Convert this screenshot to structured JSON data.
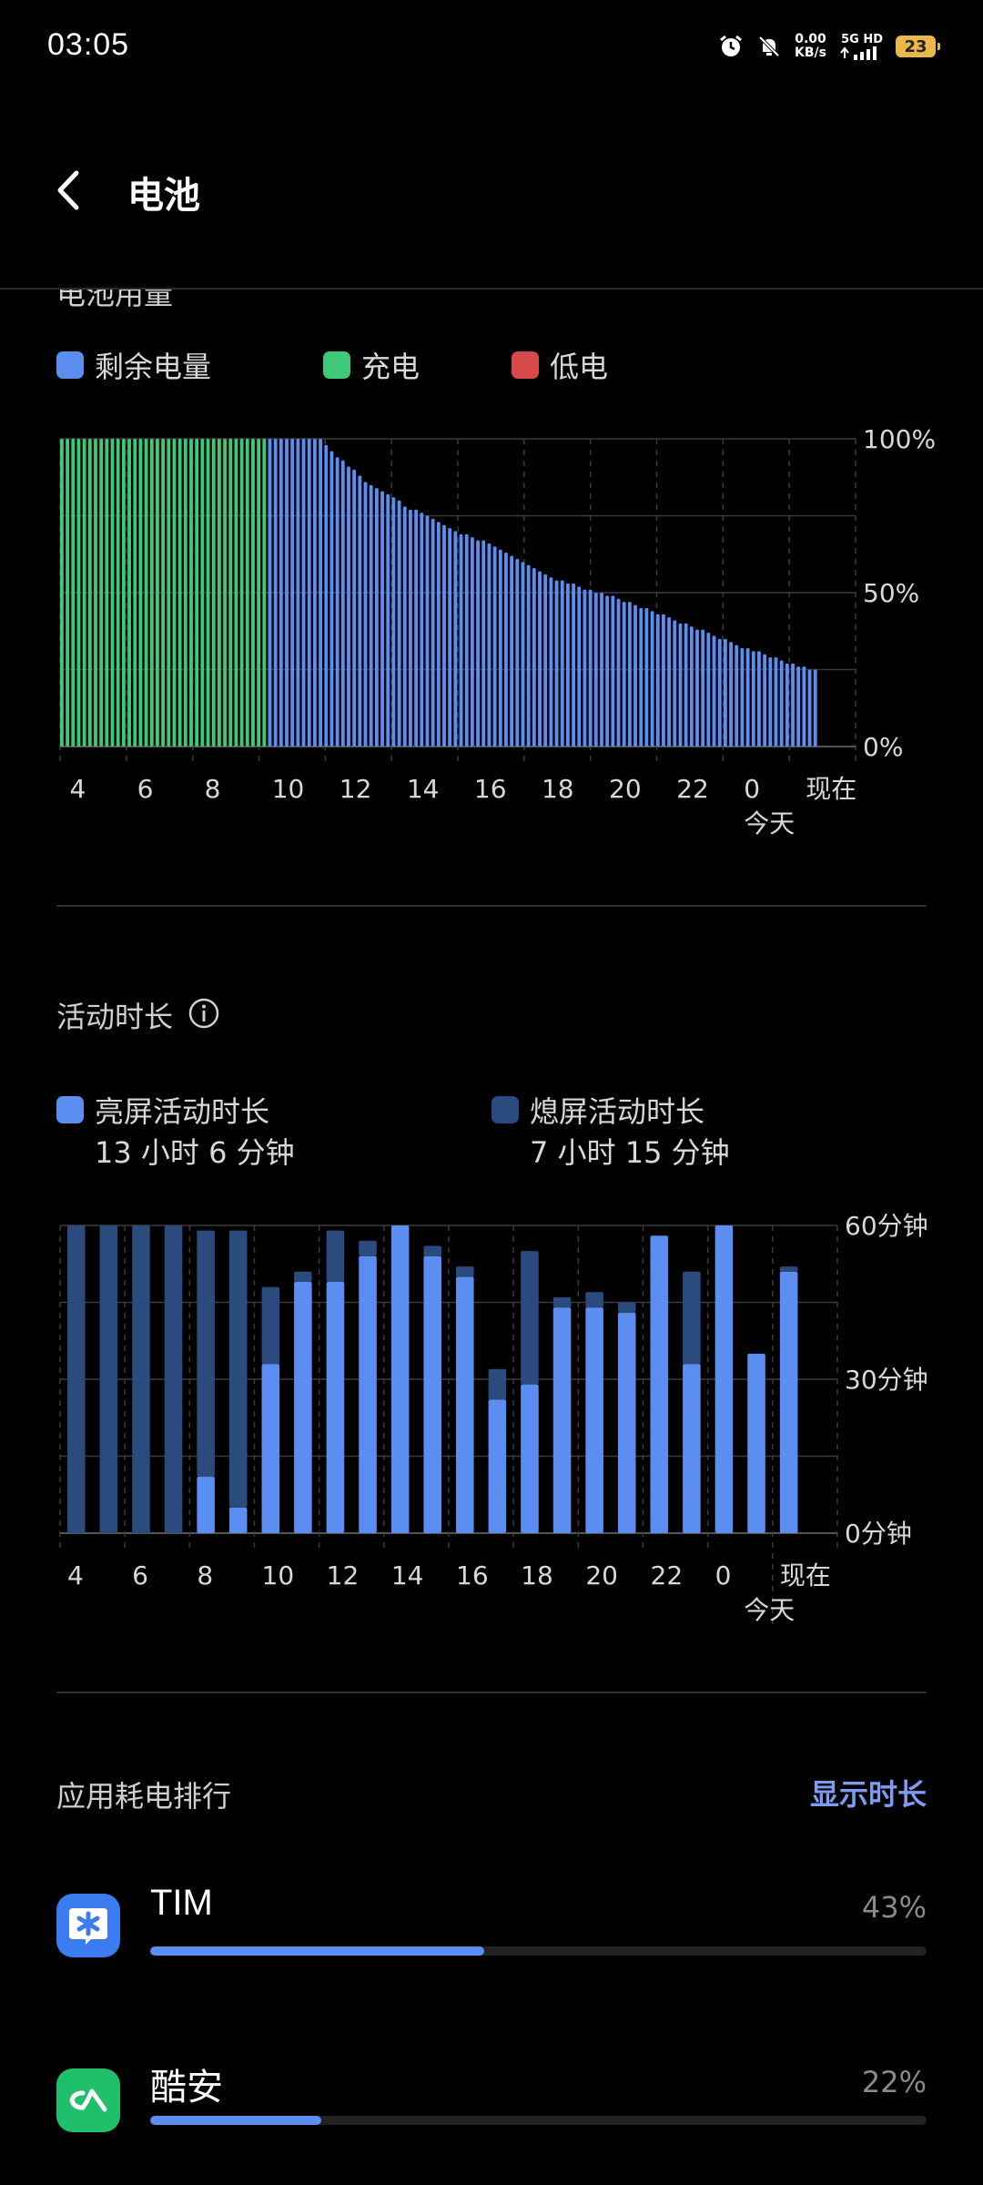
{
  "status_bar": {
    "time": "03:05",
    "net_speed_value": "0.00",
    "net_speed_unit": "KB/s",
    "network": "5G HD",
    "battery": "23"
  },
  "header": {
    "title": "电池"
  },
  "battery_usage": {
    "title": "电池用量",
    "legend": [
      {
        "label": "剩余电量",
        "color": "#5b8ef0"
      },
      {
        "label": "充电",
        "color": "#3ec878"
      },
      {
        "label": "低电",
        "color": "#d84a4a"
      }
    ]
  },
  "activity": {
    "title": "活动时长",
    "legend": [
      {
        "label": "亮屏活动时长",
        "value": "13 小时 6 分钟",
        "color": "#5b8ef0"
      },
      {
        "label": "熄屏活动时长",
        "value": "7 小时 15 分钟",
        "color": "#2b4a7e"
      }
    ]
  },
  "ranking": {
    "title": "应用耗电排行",
    "toggle_label": "显示时长",
    "apps": [
      {
        "name": "TIM",
        "percent_label": "43%",
        "fraction": 0.43,
        "icon": "tim-icon",
        "color": "#3b7cf0"
      },
      {
        "name": "酷安",
        "percent_label": "22%",
        "fraction": 0.22,
        "icon": "coolapk-icon",
        "color": "#1fbf6b"
      }
    ]
  },
  "chart_data": [
    {
      "type": "bar",
      "title": "电池用量",
      "ylim": [
        0,
        100
      ],
      "y_tick_labels": [
        "100%",
        "50%",
        "0%"
      ],
      "x_tick_labels": [
        "4",
        "6",
        "8",
        "10",
        "12",
        "14",
        "16",
        "18",
        "20",
        "22",
        "0",
        "现在"
      ],
      "x_sub_label": "今天",
      "x_range_hours": [
        3.5,
        27.1
      ],
      "charging_values": [
        100,
        100,
        100,
        100,
        100,
        100,
        100,
        100,
        100,
        100,
        100,
        100,
        100,
        100,
        100,
        100,
        100,
        100,
        100,
        100,
        100,
        100,
        100,
        100,
        100,
        100,
        100,
        100,
        100,
        100,
        100,
        100,
        100,
        100,
        100,
        100,
        100
      ],
      "remaining_values": [
        100,
        100,
        100,
        100,
        100,
        100,
        100,
        100,
        100,
        100,
        98,
        96,
        94,
        93,
        91,
        90,
        88,
        86,
        85,
        84,
        83,
        82,
        81,
        80,
        78,
        77,
        77,
        76,
        75,
        74,
        73,
        72,
        71,
        70,
        69,
        69,
        68,
        67,
        67,
        66,
        65,
        64,
        63,
        62,
        61,
        60,
        59,
        58,
        57,
        56,
        55,
        54,
        54,
        53,
        53,
        52,
        51,
        51,
        50,
        50,
        49,
        49,
        48,
        47,
        47,
        46,
        45,
        45,
        44,
        43,
        43,
        42,
        41,
        40,
        40,
        39,
        38,
        38,
        37,
        36,
        35,
        35,
        34,
        33,
        32,
        32,
        31,
        31,
        30,
        29,
        29,
        28,
        27,
        27,
        26,
        26,
        25,
        25
      ]
    },
    {
      "type": "bar",
      "title": "活动时长",
      "ylim": [
        0,
        60
      ],
      "y_tick_labels": [
        "60分钟",
        "30分钟",
        "0分钟"
      ],
      "x_tick_labels": [
        "4",
        "6",
        "8",
        "10",
        "12",
        "14",
        "16",
        "18",
        "20",
        "22",
        "0",
        "现在"
      ],
      "x_sub_label": "今天",
      "categories": [
        "3",
        "4",
        "5",
        "6",
        "7",
        "8",
        "9",
        "10",
        "11",
        "12",
        "13",
        "14",
        "15",
        "16",
        "17",
        "18",
        "19",
        "20",
        "21",
        "22",
        "23",
        "0",
        "1",
        "2"
      ],
      "series": [
        {
          "name": "亮屏活动时长",
          "values": [
            0,
            0,
            0,
            0,
            11,
            5,
            33,
            49,
            49,
            54,
            60,
            54,
            50,
            26,
            29,
            44,
            44,
            43,
            58,
            33,
            60,
            35,
            51,
            0
          ]
        },
        {
          "name": "熄屏活动时长",
          "values": [
            60,
            60,
            60,
            60,
            48,
            54,
            15,
            2,
            10,
            3,
            0,
            2,
            2,
            6,
            26,
            2,
            3,
            2,
            0,
            18,
            0,
            0,
            1,
            0
          ]
        }
      ]
    }
  ]
}
